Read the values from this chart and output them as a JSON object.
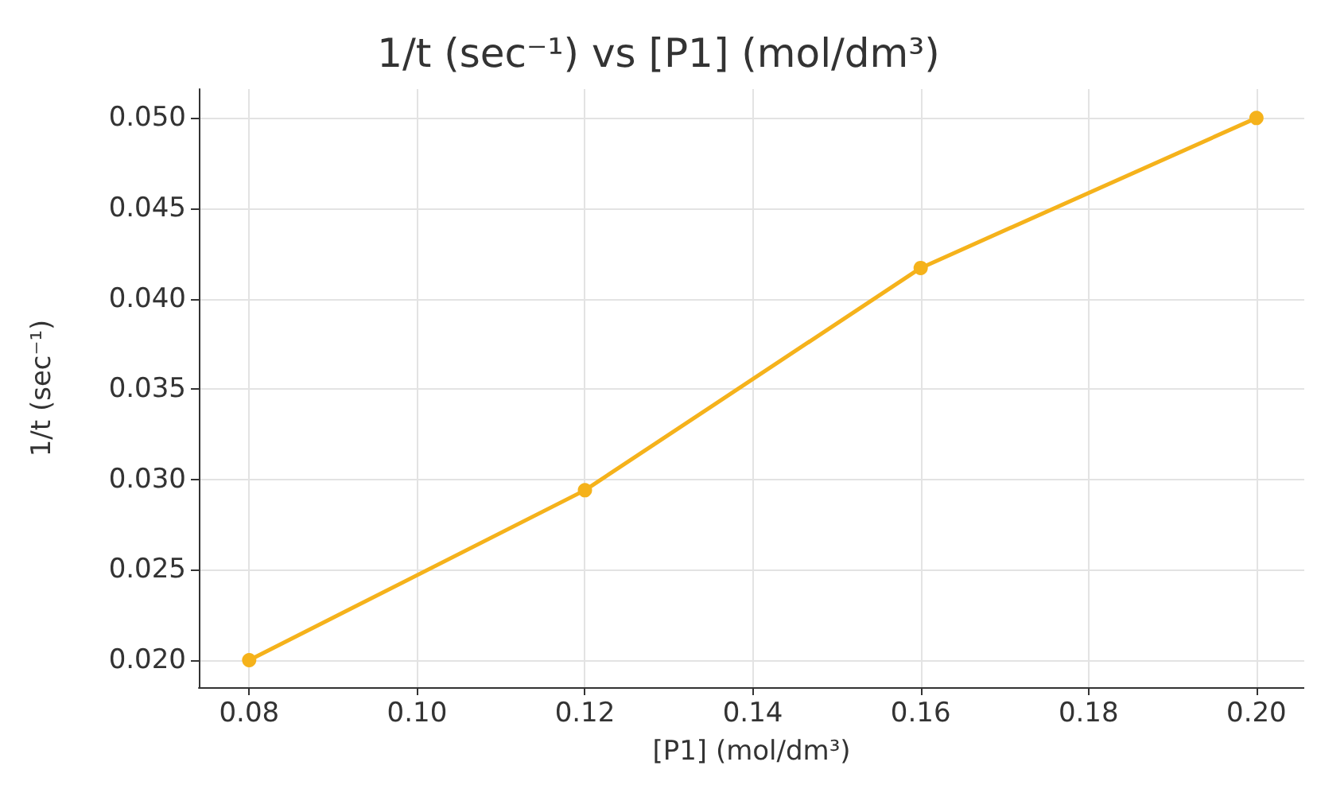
{
  "chart_data": {
    "type": "line",
    "title": "1/t (sec⁻¹) vs [P1] (mol/dm³)",
    "xlabel": "[P1] (mol/dm³)",
    "ylabel": "1/t (sec⁻¹)",
    "x": [
      0.08,
      0.12,
      0.16,
      0.2
    ],
    "series": [
      {
        "color": "#f5b21b",
        "values": [
          0.02,
          0.0294,
          0.0417,
          0.05
        ]
      }
    ],
    "xlim": [
      0.074,
      0.2057
    ],
    "ylim": [
      0.0185,
      0.0516
    ],
    "xticks": [
      {
        "value": 0.08,
        "label": "0.08"
      },
      {
        "value": 0.1,
        "label": "0.10"
      },
      {
        "value": 0.12,
        "label": "0.12"
      },
      {
        "value": 0.14,
        "label": "0.14"
      },
      {
        "value": 0.16,
        "label": "0.16"
      },
      {
        "value": 0.18,
        "label": "0.18"
      },
      {
        "value": 0.2,
        "label": "0.20"
      }
    ],
    "yticks": [
      {
        "value": 0.02,
        "label": "0.020"
      },
      {
        "value": 0.025,
        "label": "0.025"
      },
      {
        "value": 0.03,
        "label": "0.030"
      },
      {
        "value": 0.035,
        "label": "0.035"
      },
      {
        "value": 0.04,
        "label": "0.040"
      },
      {
        "value": 0.045,
        "label": "0.045"
      },
      {
        "value": 0.05,
        "label": "0.050"
      }
    ],
    "grid": true,
    "marker": "circle",
    "line_style": "solid"
  }
}
